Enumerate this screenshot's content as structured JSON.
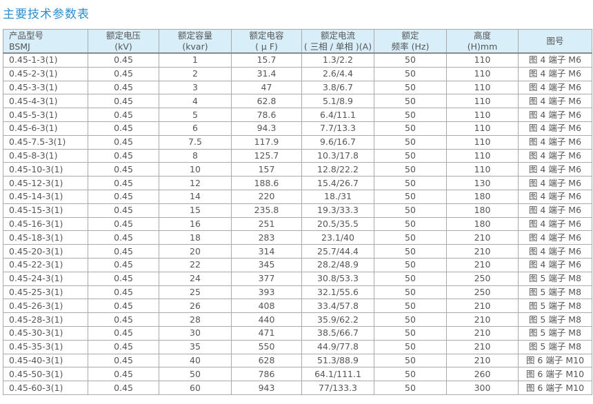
{
  "title": "主要技术参数表",
  "headers": [
    [
      "产品型号",
      "BSMJ"
    ],
    [
      "额定电压",
      "(kV)"
    ],
    [
      "额定容量",
      "(kvar)"
    ],
    [
      "额定电容",
      "( μ F)"
    ],
    [
      "额定电流",
      "( 三相 / 单相 )(A)"
    ],
    [
      "额定",
      "频率 (Hz)"
    ],
    [
      "高度",
      "(H)mm"
    ],
    [
      "图号",
      ""
    ]
  ],
  "rows": [
    [
      "0.45-1-3(1)",
      "0.45",
      "1",
      "15.7",
      "1.3/2.2",
      "50",
      "110",
      "图 4 端子 M6"
    ],
    [
      "0.45-2-3(1)",
      "0.45",
      "2",
      "31.4",
      "2.6/4.4",
      "50",
      "110",
      "图 4 端子 M6"
    ],
    [
      "0.45-3-3(1)",
      "0.45",
      "3",
      "47",
      "3.8/6.7",
      "50",
      "110",
      "图 4 端子 M6"
    ],
    [
      "0.45-4-3(1)",
      "0.45",
      "4",
      "62.8",
      "5.1/8.9",
      "50",
      "110",
      "图 4 端子 M6"
    ],
    [
      "0.45-5-3(1)",
      "0.45",
      "5",
      "78.6",
      "6.4/11.1",
      "50",
      "110",
      "图 4 端子 M6"
    ],
    [
      "0.45-6-3(1)",
      "0.45",
      "6",
      "94.3",
      "7.7/13.3",
      "50",
      "110",
      "图 4 端子 M6"
    ],
    [
      "0.45-7.5-3(1)",
      "0.45",
      "7.5",
      "117.9",
      "9.6/16.7",
      "50",
      "110",
      "图 4 端子 M6"
    ],
    [
      "0.45-8-3(1)",
      "0.45",
      "8",
      "125.7",
      "10.3/17.8",
      "50",
      "110",
      "图 4 端子 M6"
    ],
    [
      "0.45-10-3(1)",
      "0.45",
      "10",
      "157",
      "12.8/22.2",
      "50",
      "110",
      "图 4 端子 M6"
    ],
    [
      "0.45-12-3(1)",
      "0.45",
      "12",
      "188.6",
      "15.4/26.7",
      "50",
      "130",
      "图 4 端子 M6"
    ],
    [
      "0.45-14-3(1)",
      "0.45",
      "14",
      "220",
      "18./31",
      "50",
      "180",
      "图 4 端子 M6"
    ],
    [
      "0.45-15-3(1)",
      "0.45",
      "15",
      "235.8",
      "19.3/33.3",
      "50",
      "180",
      "图 4 端子 M6"
    ],
    [
      "0.45-16-3(1)",
      "0.45",
      "16",
      "251",
      "20.5/35.5",
      "50",
      "180",
      "图 4 端子 M6"
    ],
    [
      "0.45-18-3(1)",
      "0.45",
      "18",
      "283",
      "23.1/40",
      "50",
      "210",
      "图 4 端子 M6"
    ],
    [
      "0.45-20-3(1)",
      "0.45",
      "20",
      "314",
      "25.7/44.4",
      "50",
      "210",
      "图 4 端子 M6"
    ],
    [
      "0.45-22-3(1)",
      "0.45",
      "22",
      "345",
      "28.2/48.9",
      "50",
      "210",
      "图 4 端子 M6"
    ],
    [
      "0.45-24-3(1)",
      "0.45",
      "24",
      "377",
      "30.8/53.3",
      "50",
      "250",
      "图 5 端子 M8"
    ],
    [
      "0.45-25-3(1)",
      "0.45",
      "25",
      "393",
      "32.1/55.6",
      "50",
      "250",
      "图 5 端子 M8"
    ],
    [
      "0.45-26-3(1)",
      "0.45",
      "26",
      "408",
      "33.4/57.8",
      "50",
      "210",
      "图 5 端子 M8"
    ],
    [
      "0.45-28-3(1)",
      "0.45",
      "28",
      "440",
      "35.9/62.2",
      "50",
      "210",
      "图 5 端子 M8"
    ],
    [
      "0.45-30-3(1)",
      "0.45",
      "30",
      "471",
      "38.5/66.7",
      "50",
      "210",
      "图 5 端子 M8"
    ],
    [
      "0.45-35-3(1)",
      "0.45",
      "35",
      "550",
      "44.9/77.8",
      "50",
      "210",
      "图 5 端子 M8"
    ],
    [
      "0.45-40-3(1)",
      "0.45",
      "40",
      "628",
      "51.3/88.9",
      "50",
      "210",
      "图 6 端子 M10"
    ],
    [
      "0.45-50-3(1)",
      "0.45",
      "50",
      "786",
      "64.1/111.1",
      "50",
      "260",
      "图 6 端子 M10"
    ],
    [
      "0.45-60-3(1)",
      "0.45",
      "60",
      "943",
      "77/133.3",
      "50",
      "300",
      "图 6 端子 M10"
    ]
  ]
}
